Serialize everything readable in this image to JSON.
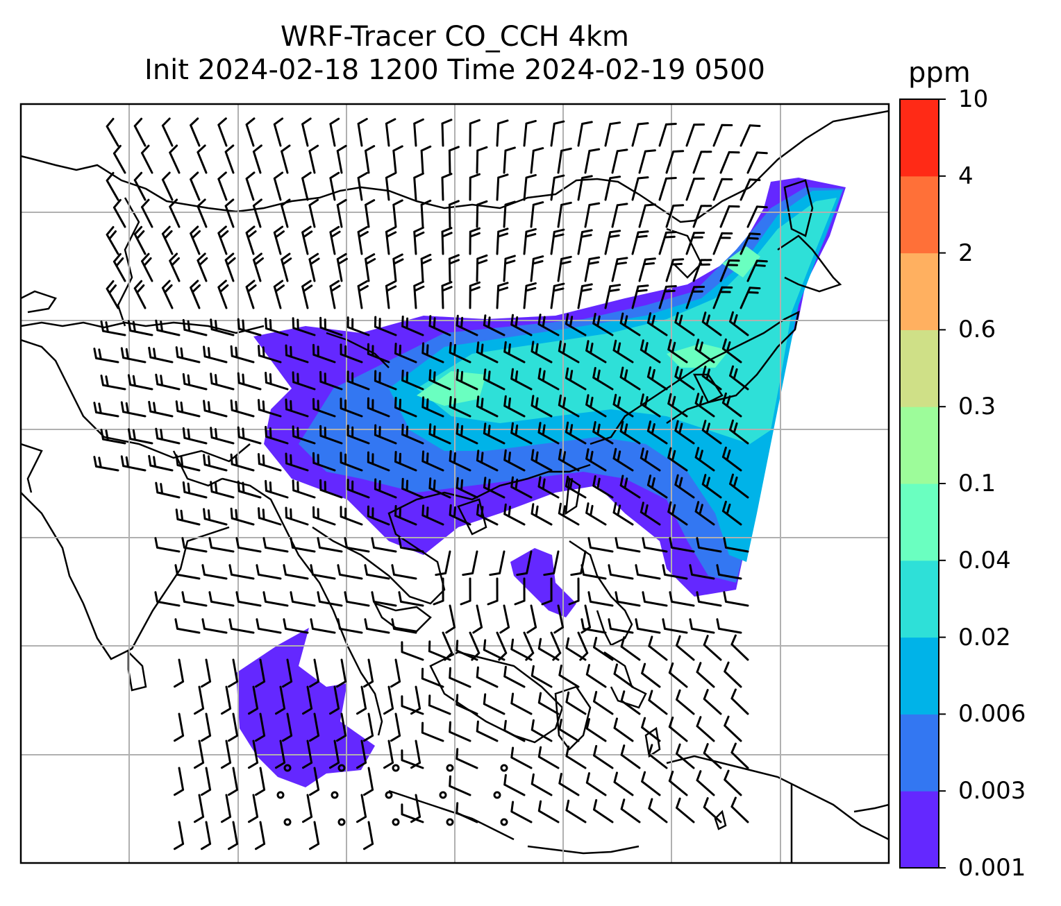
{
  "title_line1": "WRF-Tracer CO_CCH 4km",
  "title_line2": "Init 2024-02-18 1200 Time 2024-02-19 0500",
  "colorbar": {
    "unit": "ppm",
    "levels": [
      "0.001",
      "0.003",
      "0.006",
      "0.02",
      "0.04",
      "0.1",
      "0.3",
      "0.6",
      "2",
      "4",
      "10"
    ],
    "colors": [
      "#6428ff",
      "#3377f2",
      "#00b3e8",
      "#2ee0d8",
      "#6affc0",
      "#9dfc9a",
      "#cfe087",
      "#ffb060",
      "#ff7038",
      "#ff2a16"
    ]
  },
  "map": {
    "background": "#ffffff",
    "grid_color": "#b0b0b0",
    "coastline_color": "#000000",
    "wind_barb_color": "#000000"
  }
}
